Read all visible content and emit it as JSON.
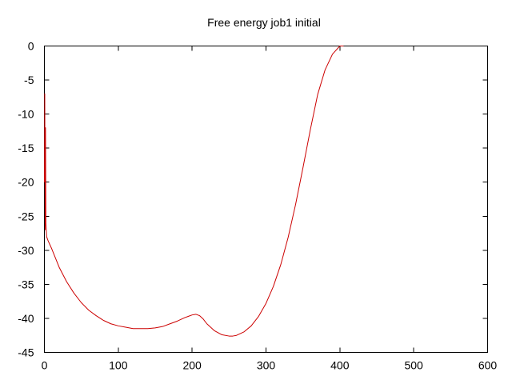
{
  "chart_data": {
    "type": "line",
    "title": "Free energy job1 initial",
    "xlabel": "",
    "ylabel": "",
    "xlim": [
      0,
      600
    ],
    "ylim": [
      -45,
      0
    ],
    "xticks": [
      0,
      100,
      200,
      300,
      400,
      500,
      600
    ],
    "yticks": [
      0,
      -5,
      -10,
      -15,
      -20,
      -25,
      -30,
      -35,
      -40,
      -45
    ],
    "grid": false,
    "legend": "none",
    "colors": {
      "series": "#cc0000",
      "frame": "#000000",
      "background": "#ffffff"
    },
    "series": [
      {
        "x": [
          0,
          0.5,
          1,
          1.5,
          2,
          3,
          5,
          10,
          20,
          30,
          40,
          50,
          60,
          70,
          80,
          90,
          100,
          110,
          120,
          130,
          140,
          150,
          160,
          170,
          180,
          190,
          195,
          200,
          205,
          210,
          215,
          220,
          230,
          240,
          250,
          255,
          260,
          270,
          280,
          290,
          300,
          310,
          320,
          330,
          340,
          350,
          360,
          370,
          380,
          390,
          400,
          403,
          405
        ],
        "y": [
          -20,
          -7,
          -27,
          -12,
          -26,
          -28,
          -28.6,
          -29.8,
          -32.5,
          -34.6,
          -36.3,
          -37.7,
          -38.8,
          -39.6,
          -40.3,
          -40.8,
          -41.1,
          -41.3,
          -41.5,
          -41.5,
          -41.5,
          -41.4,
          -41.2,
          -40.8,
          -40.4,
          -39.9,
          -39.7,
          -39.5,
          -39.4,
          -39.6,
          -40.1,
          -40.8,
          -41.8,
          -42.4,
          -42.6,
          -42.6,
          -42.5,
          -42,
          -41.1,
          -39.7,
          -37.8,
          -35.3,
          -32.1,
          -28.1,
          -23.3,
          -17.9,
          -12.3,
          -7.1,
          -3.5,
          -1.2,
          0,
          0,
          0
        ]
      }
    ]
  }
}
